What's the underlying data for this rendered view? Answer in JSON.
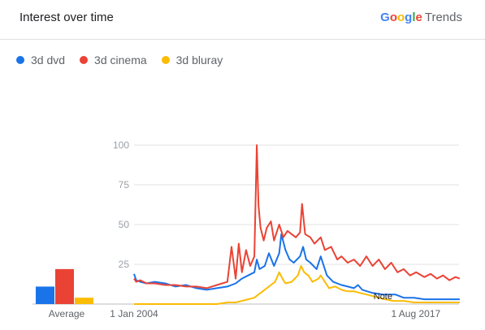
{
  "header": {
    "title": "Interest over time",
    "brand_letters": [
      {
        "ch": "G",
        "color": "#4285F4"
      },
      {
        "ch": "o",
        "color": "#EA4335"
      },
      {
        "ch": "o",
        "color": "#FBBC05"
      },
      {
        "ch": "g",
        "color": "#4285F4"
      },
      {
        "ch": "l",
        "color": "#34A853"
      },
      {
        "ch": "e",
        "color": "#EA4335"
      }
    ],
    "brand_suffix": "Trends"
  },
  "chart_data": {
    "type": "line",
    "title": "Interest over time",
    "ylim": [
      0,
      100
    ],
    "yticks": [
      "100",
      "75",
      "50",
      "25"
    ],
    "x_start": "2004-01",
    "x_end": "2019-09",
    "x_ticks": [
      {
        "label": "1 Jan 2004",
        "date": "2004-01"
      },
      {
        "label": "1 Aug 2017",
        "date": "2017-08"
      }
    ],
    "note": {
      "label": "Note",
      "date": "2016-01"
    },
    "average": {
      "label": "Average",
      "values": [
        11,
        22,
        4
      ]
    },
    "series": [
      {
        "name": "3d dvd",
        "color": "#1a73e8",
        "points": [
          [
            2004.0,
            19
          ],
          [
            2004.1,
            15
          ],
          [
            2004.3,
            14
          ],
          [
            2004.6,
            13
          ],
          [
            2005.0,
            14
          ],
          [
            2005.5,
            13
          ],
          [
            2006.0,
            11
          ],
          [
            2006.5,
            12
          ],
          [
            2007.0,
            10
          ],
          [
            2007.5,
            9
          ],
          [
            2008.0,
            10
          ],
          [
            2008.5,
            11
          ],
          [
            2008.9,
            13
          ],
          [
            2009.2,
            16
          ],
          [
            2009.5,
            18
          ],
          [
            2009.8,
            20
          ],
          [
            2009.92,
            28
          ],
          [
            2010.05,
            22
          ],
          [
            2010.3,
            24
          ],
          [
            2010.5,
            32
          ],
          [
            2010.75,
            24
          ],
          [
            2011.0,
            32
          ],
          [
            2011.1,
            44
          ],
          [
            2011.3,
            34
          ],
          [
            2011.5,
            28
          ],
          [
            2011.7,
            26
          ],
          [
            2012.0,
            30
          ],
          [
            2012.15,
            36
          ],
          [
            2012.3,
            28
          ],
          [
            2012.5,
            26
          ],
          [
            2012.8,
            22
          ],
          [
            2013.0,
            30
          ],
          [
            2013.1,
            26
          ],
          [
            2013.3,
            18
          ],
          [
            2013.6,
            14
          ],
          [
            2014.0,
            12
          ],
          [
            2014.3,
            11
          ],
          [
            2014.6,
            10
          ],
          [
            2014.8,
            12
          ],
          [
            2015.0,
            9
          ],
          [
            2015.5,
            7
          ],
          [
            2016.0,
            6
          ],
          [
            2016.3,
            6
          ],
          [
            2016.6,
            6
          ],
          [
            2016.8,
            5
          ],
          [
            2017.0,
            4
          ],
          [
            2017.5,
            4
          ],
          [
            2018.0,
            3
          ],
          [
            2018.5,
            3
          ],
          [
            2019.0,
            3
          ],
          [
            2019.7,
            3
          ]
        ]
      },
      {
        "name": "3d cinema",
        "color": "#ea4335",
        "points": [
          [
            2004.0,
            16
          ],
          [
            2004.1,
            14
          ],
          [
            2004.3,
            15
          ],
          [
            2004.6,
            13
          ],
          [
            2005.0,
            13
          ],
          [
            2005.5,
            12
          ],
          [
            2006.0,
            12
          ],
          [
            2006.5,
            11
          ],
          [
            2007.0,
            11
          ],
          [
            2007.5,
            10
          ],
          [
            2008.0,
            12
          ],
          [
            2008.5,
            14
          ],
          [
            2008.7,
            36
          ],
          [
            2008.9,
            16
          ],
          [
            2009.05,
            38
          ],
          [
            2009.2,
            20
          ],
          [
            2009.4,
            34
          ],
          [
            2009.6,
            24
          ],
          [
            2009.8,
            30
          ],
          [
            2009.92,
            100
          ],
          [
            2010.0,
            62
          ],
          [
            2010.1,
            48
          ],
          [
            2010.25,
            40
          ],
          [
            2010.4,
            48
          ],
          [
            2010.6,
            52
          ],
          [
            2010.75,
            40
          ],
          [
            2011.0,
            50
          ],
          [
            2011.2,
            42
          ],
          [
            2011.4,
            46
          ],
          [
            2011.6,
            44
          ],
          [
            2011.8,
            42
          ],
          [
            2012.0,
            45
          ],
          [
            2012.1,
            63
          ],
          [
            2012.25,
            44
          ],
          [
            2012.5,
            42
          ],
          [
            2012.7,
            38
          ],
          [
            2013.0,
            42
          ],
          [
            2013.2,
            34
          ],
          [
            2013.5,
            36
          ],
          [
            2013.8,
            28
          ],
          [
            2014.0,
            30
          ],
          [
            2014.3,
            26
          ],
          [
            2014.6,
            28
          ],
          [
            2014.9,
            24
          ],
          [
            2015.2,
            30
          ],
          [
            2015.5,
            24
          ],
          [
            2015.8,
            28
          ],
          [
            2016.1,
            22
          ],
          [
            2016.4,
            26
          ],
          [
            2016.7,
            20
          ],
          [
            2017.0,
            22
          ],
          [
            2017.3,
            18
          ],
          [
            2017.6,
            20
          ],
          [
            2018.0,
            17
          ],
          [
            2018.3,
            19
          ],
          [
            2018.6,
            16
          ],
          [
            2018.9,
            18
          ],
          [
            2019.2,
            15
          ],
          [
            2019.5,
            17
          ],
          [
            2019.7,
            16
          ]
        ]
      },
      {
        "name": "3d bluray",
        "color": "#fbbc04",
        "points": [
          [
            2004.0,
            0
          ],
          [
            2005.0,
            0
          ],
          [
            2006.0,
            0
          ],
          [
            2007.0,
            0
          ],
          [
            2008.0,
            0
          ],
          [
            2008.5,
            1
          ],
          [
            2008.9,
            1
          ],
          [
            2009.2,
            2
          ],
          [
            2009.5,
            3
          ],
          [
            2009.8,
            4
          ],
          [
            2010.0,
            6
          ],
          [
            2010.2,
            8
          ],
          [
            2010.4,
            10
          ],
          [
            2010.6,
            12
          ],
          [
            2010.8,
            14
          ],
          [
            2011.0,
            20
          ],
          [
            2011.15,
            16
          ],
          [
            2011.3,
            13
          ],
          [
            2011.6,
            14
          ],
          [
            2011.9,
            18
          ],
          [
            2012.05,
            24
          ],
          [
            2012.2,
            20
          ],
          [
            2012.4,
            18
          ],
          [
            2012.6,
            14
          ],
          [
            2012.9,
            16
          ],
          [
            2013.0,
            18
          ],
          [
            2013.2,
            14
          ],
          [
            2013.4,
            10
          ],
          [
            2013.7,
            11
          ],
          [
            2014.0,
            9
          ],
          [
            2014.3,
            8
          ],
          [
            2014.6,
            8
          ],
          [
            2014.9,
            7
          ],
          [
            2015.2,
            6
          ],
          [
            2015.5,
            5
          ],
          [
            2015.8,
            4
          ],
          [
            2016.1,
            3
          ],
          [
            2016.5,
            2
          ],
          [
            2017.0,
            2
          ],
          [
            2017.5,
            1
          ],
          [
            2018.0,
            1
          ],
          [
            2018.5,
            1
          ],
          [
            2019.0,
            1
          ],
          [
            2019.7,
            1
          ]
        ]
      }
    ]
  }
}
